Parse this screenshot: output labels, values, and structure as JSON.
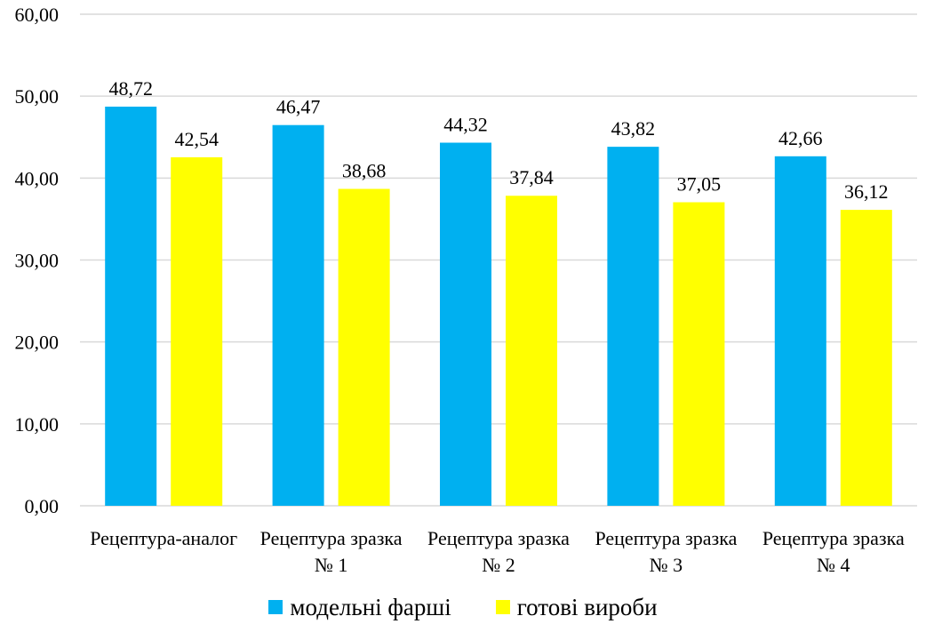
{
  "chart_data": {
    "type": "bar",
    "categories": [
      [
        "Рецептура-аналог"
      ],
      [
        "Рецептура зразка",
        "№ 1"
      ],
      [
        "Рецептура зразка",
        "№ 2"
      ],
      [
        "Рецептура зразка",
        "№ 3"
      ],
      [
        "Рецептура зразка",
        "№ 4"
      ]
    ],
    "series": [
      {
        "name": "модельні фарші",
        "color": "#00B0F0",
        "values": [
          48.72,
          46.47,
          44.32,
          43.82,
          42.66
        ],
        "labels": [
          "48,72",
          "46,47",
          "44,32",
          "43,82",
          "42,66"
        ]
      },
      {
        "name": "готові вироби",
        "color": "#FFFF00",
        "values": [
          42.54,
          38.68,
          37.84,
          37.05,
          36.12
        ],
        "labels": [
          "42,54",
          "38,68",
          "37,84",
          "37,05",
          "36,12"
        ]
      }
    ],
    "ylim": [
      0,
      60
    ],
    "yticks": [
      "0,00",
      "10,00",
      "20,00",
      "30,00",
      "40,00",
      "50,00",
      "60,00"
    ],
    "grid": true,
    "legend_position": "bottom"
  }
}
